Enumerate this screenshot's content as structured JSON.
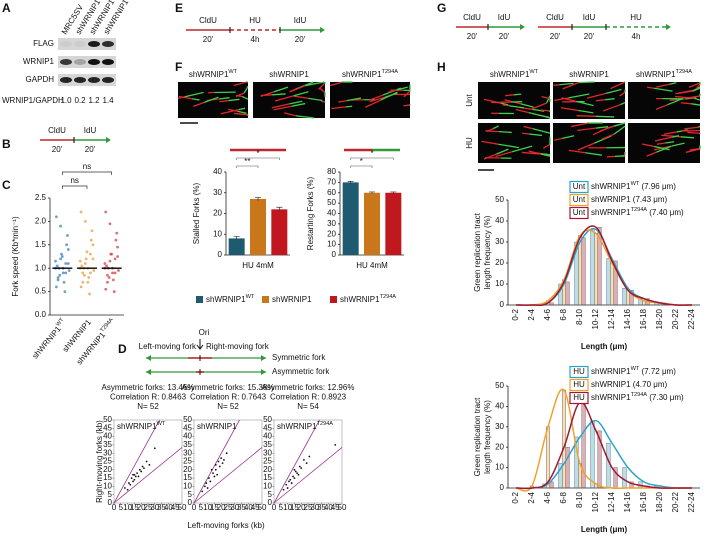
{
  "panel_labels": [
    "A",
    "B",
    "C",
    "D",
    "E",
    "F",
    "G",
    "H"
  ],
  "blot": {
    "lanes": [
      {
        "base": "MRC5SV"
      },
      {
        "base": "shWRNIP1"
      },
      {
        "base": "shWRNIP1",
        "sup": "WT"
      },
      {
        "base": "shWRNIP1",
        "sup": "T294A"
      }
    ],
    "rows": [
      "FLAG",
      "WRNIP1",
      "GAPDH"
    ],
    "ratio_label": "WRNIP1/GAPDH",
    "ratios": [
      "1.0",
      "0.2",
      "1.2",
      "1.4"
    ]
  },
  "schemes": {
    "B": [
      {
        "label": "CldU",
        "time": "20'"
      },
      {
        "label": "IdU",
        "time": "20'"
      }
    ],
    "E": [
      {
        "label": "CldU",
        "time": "20'"
      },
      {
        "label": "HU",
        "time": "4h"
      },
      {
        "label": "IdU",
        "time": "20'"
      }
    ],
    "G1": [
      {
        "label": "CldU",
        "time": "20'"
      },
      {
        "label": "IdU",
        "time": "20'"
      }
    ],
    "G2": [
      {
        "label": "CldU",
        "time": "20'"
      },
      {
        "label": "IdU",
        "time": "20'"
      },
      {
        "label": "HU",
        "time": "4h"
      }
    ]
  },
  "fork_diagram": {
    "ori": "Ori",
    "left": "Left-moving fork",
    "right": "Right-moving fork",
    "symmetric": "Symmetric fork",
    "asymmetric": "Asymmetric fork"
  },
  "fiber_images_F": {
    "labels": [
      {
        "base": "shWRNIP1",
        "sup": "WT"
      },
      {
        "base": "shWRNIP1"
      },
      {
        "base": "shWRNIP1",
        "sup": "T294A"
      }
    ]
  },
  "fiber_images_H": {
    "columns": [
      {
        "base": "shWRNIP1",
        "sup": "WT"
      },
      {
        "base": "shWRNIP1"
      },
      {
        "base": "shWRNIP1",
        "sup": "T294A"
      }
    ],
    "rows": [
      "Unt",
      "HU"
    ]
  },
  "chart_data": [
    {
      "type": "strip",
      "ylabel": "Fork speed (Kb*min⁻¹)",
      "ylim": [
        0,
        2.5
      ],
      "yticks": [
        {
          "value": 0,
          "label": "0.0"
        },
        0.5,
        {
          "value": 1,
          "label": "1.0"
        },
        1.5,
        {
          "value": 2,
          "label": "2.0"
        },
        2.5
      ],
      "annotations": [
        "ns",
        "ns"
      ],
      "series": [
        {
          "name": {
            "base": "shWRNIP1",
            "sup": "WT"
          },
          "color": "#3f7fb8",
          "median": 1.0,
          "values": [
            1.0,
            0.8,
            1.2,
            0.9,
            1.1,
            1.4,
            0.6,
            1.0,
            1.3,
            0.7,
            1.5,
            0.95,
            1.05,
            0.85,
            1.25,
            0.5,
            1.7,
            1.15,
            0.75,
            1.9,
            1.0,
            0.9,
            1.1,
            2.1
          ]
        },
        {
          "name": {
            "base": "shWRNIP1"
          },
          "color": "#e0a040",
          "median": 1.0,
          "values": [
            1.0,
            0.9,
            1.1,
            0.7,
            1.3,
            1.5,
            0.6,
            1.0,
            1.2,
            0.8,
            1.6,
            0.95,
            1.05,
            0.85,
            1.35,
            0.45,
            1.8,
            1.15,
            0.7,
            2.0,
            1.0,
            0.9,
            1.2,
            2.2
          ]
        },
        {
          "name": {
            "base": "shWRNIP1",
            "sup": "T294A"
          },
          "color": "#d0404a",
          "median": 1.0,
          "values": [
            1.0,
            0.85,
            1.15,
            0.9,
            1.2,
            1.45,
            0.55,
            1.0,
            1.3,
            0.75,
            1.6,
            0.95,
            1.05,
            0.8,
            1.3,
            0.5,
            1.75,
            1.1,
            0.7,
            1.95,
            1.0,
            0.9,
            1.25,
            2.2
          ]
        }
      ]
    },
    {
      "type": "bar",
      "series": [
        {
          "name": {
            "base": "shWRNIP1",
            "sup": "WT"
          },
          "color": "#1f5b70"
        },
        {
          "name": {
            "base": "shWRNIP1"
          },
          "color": "#c8781a"
        },
        {
          "name": {
            "base": "shWRNIP1",
            "sup": "T294A"
          },
          "color": "#c0181e"
        }
      ],
      "panels": [
        {
          "ylabel": "Stalled Forks (%)",
          "values": [
            8,
            27,
            22
          ],
          "errors": [
            1,
            0.8,
            1
          ],
          "ylim": [
            0,
            40
          ],
          "yticks": [
            0,
            10,
            20,
            30,
            40
          ],
          "xlabel": "HU 4mM",
          "annotations": [
            "**",
            "*"
          ]
        },
        {
          "ylabel": "Restarting Forks (%)",
          "values": [
            70,
            60,
            60
          ],
          "errors": [
            1,
            0.8,
            0.8
          ],
          "ylim": [
            0,
            80
          ],
          "yticks": [
            0,
            10,
            20,
            30,
            40,
            50,
            60,
            70,
            80
          ],
          "xlabel": "HU 4mM",
          "annotations": [
            "*",
            "*"
          ]
        }
      ]
    },
    {
      "type": "scatter",
      "xlabel": "Left-moving forks (kb)",
      "ylabel": "Right-moving forks (kb)",
      "xlim": [
        0,
        50
      ],
      "ylim": [
        0,
        50
      ],
      "xticks": [
        0,
        5,
        10,
        15,
        20,
        25,
        30,
        35,
        40,
        45,
        50
      ],
      "yticks": [
        0,
        5,
        10,
        15,
        20,
        25,
        30,
        35,
        40,
        45,
        50
      ],
      "panels": [
        {
          "name": {
            "base": "shWRNIP1",
            "sup": "WT"
          },
          "header": [
            "Asymmetric forks: 13.46%",
            "Correlation R: 0.8463",
            "N= 52"
          ],
          "x": [
            8,
            10,
            11,
            12,
            13,
            14,
            15,
            15,
            16,
            17,
            18,
            19,
            20,
            21,
            22,
            24,
            26,
            14,
            30
          ],
          "y": [
            9,
            8,
            12,
            11,
            15,
            13,
            14,
            17,
            16,
            18,
            16,
            20,
            19,
            22,
            21,
            25,
            23,
            17,
            33
          ]
        },
        {
          "name": {
            "base": "shWRNIP1"
          },
          "header": [
            "Asymmetric forks: 15.38%",
            "Correlation R: 0.7643",
            "N= 52"
          ],
          "x": [
            6,
            8,
            10,
            11,
            12,
            14,
            15,
            16,
            17,
            18,
            19,
            20,
            21,
            22,
            24,
            13,
            16,
            9
          ],
          "y": [
            7,
            10,
            9,
            15,
            13,
            18,
            16,
            20,
            17,
            25,
            22,
            27,
            24,
            26,
            30,
            20,
            23,
            12
          ]
        },
        {
          "name": {
            "base": "shWRNIP1",
            "sup": "T294A"
          },
          "header": [
            "Asymmetric forks: 12.96%",
            "Correlation R: 0.8923",
            "N= 54"
          ],
          "x": [
            7,
            9,
            10,
            12,
            13,
            14,
            15,
            16,
            17,
            18,
            19,
            20,
            22,
            24,
            26,
            45,
            11,
            15
          ],
          "y": [
            8,
            11,
            9,
            14,
            12,
            16,
            15,
            19,
            18,
            17,
            22,
            21,
            26,
            24,
            28,
            35,
            13,
            20
          ]
        }
      ]
    },
    {
      "type": "grouped_bar",
      "categories": [
        "0-2",
        "2-4",
        "4-6",
        "6-8",
        "8-10",
        "10-12",
        "12-14",
        "14-16",
        "16-18",
        "18-20",
        "20-22",
        "22-24"
      ],
      "xlabel": "Length (μm)",
      "ylabel": [
        "Green replication tract",
        "length frequency (%)"
      ],
      "ylim": [
        0,
        50
      ],
      "yticks": [
        0,
        10,
        20,
        30,
        40,
        50
      ],
      "panels": [
        {
          "series": [
            {
              "tag": "Unt",
              "name": {
                "base": "shWRNIP1",
                "sup": "WT",
                "suffix": " (7.96 μm)"
              },
              "color": "#2ba3c9",
              "values": [
                0,
                0,
                1,
                10,
                30,
                36,
                22,
                8,
                3,
                1,
                0,
                0
              ]
            },
            {
              "tag": "Unt",
              "name": {
                "base": "shWRNIP1",
                "suffix": " (7.43 μm)"
              },
              "color": "#f0a030",
              "values": [
                0,
                0,
                2,
                12,
                33,
                34,
                20,
                7,
                2,
                1,
                0,
                0
              ]
            },
            {
              "tag": "Unt",
              "name": {
                "base": "shWRNIP1",
                "sup": "T294A",
                "suffix": " (7.40 μm)"
              },
              "color": "#a01830",
              "values": [
                0,
                0,
                1,
                11,
                32,
                37,
                21,
                7,
                3,
                1,
                0,
                0
              ]
            }
          ]
        },
        {
          "series": [
            {
              "tag": "HU",
              "name": {
                "base": "shWRNIP1",
                "sup": "WT",
                "suffix": " (7.72 μm)"
              },
              "color": "#2ba3c9",
              "values": [
                0,
                0,
                2,
                12,
                25,
                33,
                22,
                10,
                3,
                1,
                0,
                0
              ]
            },
            {
              "tag": "HU",
              "name": {
                "base": "shWRNIP1",
                "suffix": " (4.70 μm)"
              },
              "color": "#f0a030",
              "values": [
                0,
                1,
                30,
                48,
                12,
                2,
                0,
                0,
                0,
                0,
                0,
                0
              ]
            },
            {
              "tag": "HU",
              "name": {
                "base": "shWRNIP1",
                "sup": "T294A",
                "suffix": " (7.30 μm)"
              },
              "color": "#a01830",
              "values": [
                0,
                0,
                3,
                20,
                42,
                28,
                10,
                3,
                1,
                0,
                0,
                0
              ]
            }
          ]
        }
      ]
    }
  ]
}
